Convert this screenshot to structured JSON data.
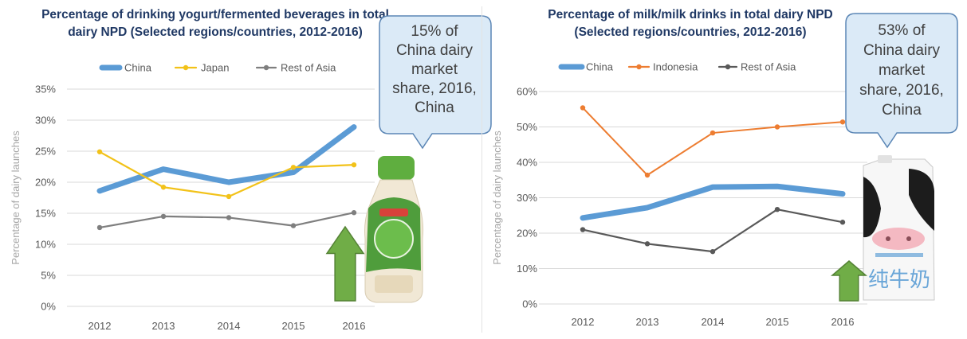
{
  "chart_data": [
    {
      "type": "line",
      "title": "Percentage of drinking yogurt/fermented beverages in total\ndairy NPD (Selected regions/countries, 2012-2016)",
      "ylabel": "Percentage of dairy launches",
      "x": [
        "2012",
        "2013",
        "2014",
        "2015",
        "2016"
      ],
      "ylim": [
        0,
        35
      ],
      "yticks": [
        "0%",
        "5%",
        "10%",
        "15%",
        "20%",
        "25%",
        "30%",
        "35%"
      ],
      "grid": true,
      "legend": "top",
      "series": [
        {
          "name": "China",
          "color": "#5b9bd5",
          "values": [
            18.6,
            22.1,
            20.0,
            21.6,
            28.9
          ]
        },
        {
          "name": "Japan",
          "color": "#f2c219",
          "values": [
            24.9,
            19.2,
            17.7,
            22.4,
            22.8
          ]
        },
        {
          "name": "Rest of Asia",
          "color": "#7f7f7f",
          "values": [
            12.7,
            14.5,
            14.3,
            13.0,
            15.1
          ]
        }
      ],
      "callout": [
        "15% of",
        "China dairy",
        "market",
        "share, 2016,",
        "China"
      ],
      "image": "yogurt-drink-bottle"
    },
    {
      "type": "line",
      "title": "Percentage of milk/milk drinks in total dairy NPD\n(Selected regions/countries, 2012-2016)",
      "ylabel": "Percentage of dairy launches",
      "x": [
        "2012",
        "2013",
        "2014",
        "2015",
        "2016"
      ],
      "ylim": [
        0,
        60
      ],
      "yticks": [
        "0%",
        "10%",
        "20%",
        "30%",
        "40%",
        "50%",
        "60%"
      ],
      "grid": true,
      "legend": "top",
      "series": [
        {
          "name": "China",
          "color": "#5b9bd5",
          "values": [
            24.3,
            27.2,
            33.0,
            33.2,
            31.1
          ]
        },
        {
          "name": "Indonesia",
          "color": "#ed7d31",
          "values": [
            55.4,
            36.4,
            48.3,
            50.0,
            51.4
          ]
        },
        {
          "name": "Rest of Asia",
          "color": "#595959",
          "values": [
            21.0,
            17.0,
            14.8,
            26.7,
            23.1
          ]
        }
      ],
      "callout": [
        "53% of",
        "China dairy",
        "market",
        "share, 2016,",
        "China"
      ],
      "image": "milk-carton",
      "product_text": "纯牛奶"
    }
  ]
}
